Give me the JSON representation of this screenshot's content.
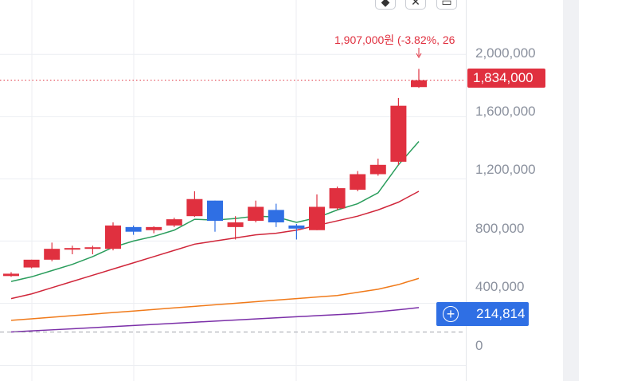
{
  "chart_data": {
    "type": "candlestick",
    "y_ticks": [
      "2,000,000",
      "1,600,000",
      "1,200,000",
      "800,000",
      "400,000",
      "0"
    ],
    "y_tick_values": [
      2000000,
      1600000,
      1200000,
      800000,
      400000,
      0
    ],
    "ylim": [
      -100000,
      2350000
    ],
    "grid": true,
    "last_price_label": "1,834,000",
    "last_price_value": 1834000,
    "crosshair_label": "214,814",
    "crosshair_value": 214814,
    "annotation": "1,907,000원 (-3.82%, 26",
    "candles": [
      {
        "o": 575000,
        "h": 600000,
        "l": 570000,
        "c": 590000
      },
      {
        "o": 630000,
        "h": 680000,
        "l": 625000,
        "c": 680000
      },
      {
        "o": 680000,
        "h": 790000,
        "l": 670000,
        "c": 750000
      },
      {
        "o": 755000,
        "h": 770000,
        "l": 715000,
        "c": 755000
      },
      {
        "o": 755000,
        "h": 770000,
        "l": 715000,
        "c": 760000
      },
      {
        "o": 750000,
        "h": 920000,
        "l": 740000,
        "c": 900000
      },
      {
        "o": 890000,
        "h": 900000,
        "l": 840000,
        "c": 860000
      },
      {
        "o": 870000,
        "h": 895000,
        "l": 850000,
        "c": 890000
      },
      {
        "o": 900000,
        "h": 950000,
        "l": 890000,
        "c": 940000
      },
      {
        "o": 960000,
        "h": 1120000,
        "l": 955000,
        "c": 1070000
      },
      {
        "o": 1060000,
        "h": 1060000,
        "l": 860000,
        "c": 930000
      },
      {
        "o": 890000,
        "h": 960000,
        "l": 810000,
        "c": 920000
      },
      {
        "o": 930000,
        "h": 1060000,
        "l": 920000,
        "c": 1020000
      },
      {
        "o": 1000000,
        "h": 1040000,
        "l": 890000,
        "c": 920000
      },
      {
        "o": 900000,
        "h": 910000,
        "l": 810000,
        "c": 880000
      },
      {
        "o": 870000,
        "h": 1100000,
        "l": 870000,
        "c": 1020000
      },
      {
        "o": 1010000,
        "h": 1150000,
        "l": 1000000,
        "c": 1140000
      },
      {
        "o": 1130000,
        "h": 1250000,
        "l": 1120000,
        "c": 1230000
      },
      {
        "o": 1230000,
        "h": 1330000,
        "l": 1220000,
        "c": 1290000
      },
      {
        "o": 1310000,
        "h": 1720000,
        "l": 1290000,
        "c": 1670000
      },
      {
        "o": 1790000,
        "h": 1907000,
        "l": 1785000,
        "c": 1834000
      }
    ],
    "series": [
      {
        "color": "#2a9d5c",
        "values": [
          540000,
          570000,
          610000,
          650000,
          700000,
          760000,
          800000,
          830000,
          870000,
          940000,
          935000,
          945000,
          960000,
          955000,
          920000,
          950000,
          1000000,
          1040000,
          1110000,
          1290000,
          1440000
        ]
      },
      {
        "color": "#d0263a",
        "values": [
          430000,
          460000,
          500000,
          540000,
          580000,
          620000,
          660000,
          700000,
          740000,
          780000,
          800000,
          820000,
          840000,
          850000,
          870000,
          900000,
          930000,
          960000,
          1000000,
          1050000,
          1120000
        ]
      },
      {
        "color": "#f07a1a",
        "values": [
          290000,
          300000,
          310000,
          320000,
          330000,
          340000,
          350000,
          360000,
          370000,
          380000,
          390000,
          400000,
          410000,
          420000,
          430000,
          440000,
          450000,
          470000,
          490000,
          520000,
          560000
        ]
      },
      {
        "color": "#7b2fa8",
        "values": [
          215000,
          222000,
          229000,
          236000,
          243000,
          250000,
          257000,
          264000,
          271000,
          278000,
          285000,
          292000,
          299000,
          306000,
          313000,
          320000,
          327000,
          334000,
          345000,
          358000,
          372000
        ]
      }
    ],
    "colors": {
      "up": "#e0303f",
      "down": "#2f6fe4",
      "crosshair": "#2f6fe4",
      "grid": "#eceef2"
    }
  }
}
